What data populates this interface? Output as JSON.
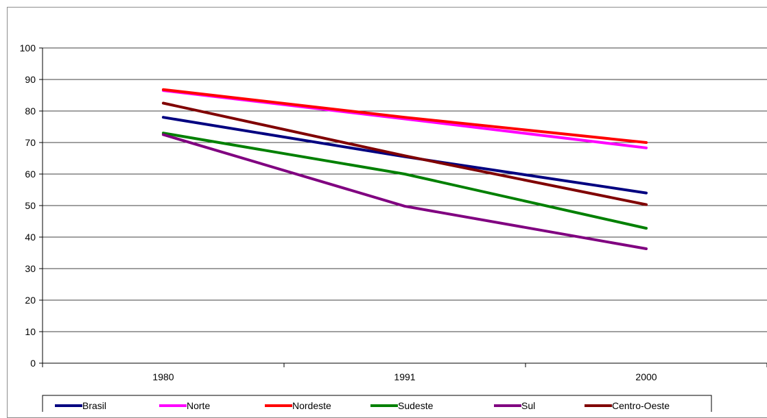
{
  "chart_data": {
    "type": "line",
    "title": "",
    "xlabel": "",
    "ylabel": "",
    "categories": [
      "1980",
      "1991",
      "2000"
    ],
    "ylim": [
      0,
      100
    ],
    "yticks": [
      0,
      10,
      20,
      30,
      40,
      50,
      60,
      70,
      80,
      90,
      100
    ],
    "grid": "horizontal",
    "legend_position": "bottom",
    "series": [
      {
        "name": "Brasil",
        "color": "#000080",
        "values": [
          78,
          65.5,
          54
        ]
      },
      {
        "name": "Norte",
        "color": "#FF00FF",
        "values": [
          86.5,
          77.5,
          68.3
        ]
      },
      {
        "name": "Nordeste",
        "color": "#FF0000",
        "values": [
          86.8,
          78,
          70
        ]
      },
      {
        "name": "Sudeste",
        "color": "#008000",
        "values": [
          73,
          60,
          42.8
        ]
      },
      {
        "name": "Sul",
        "color": "#800080",
        "values": [
          72.5,
          49.8,
          36.3
        ]
      },
      {
        "name": "Centro-Oeste",
        "color": "#800000",
        "values": [
          82.5,
          65.8,
          50.3
        ]
      }
    ]
  }
}
